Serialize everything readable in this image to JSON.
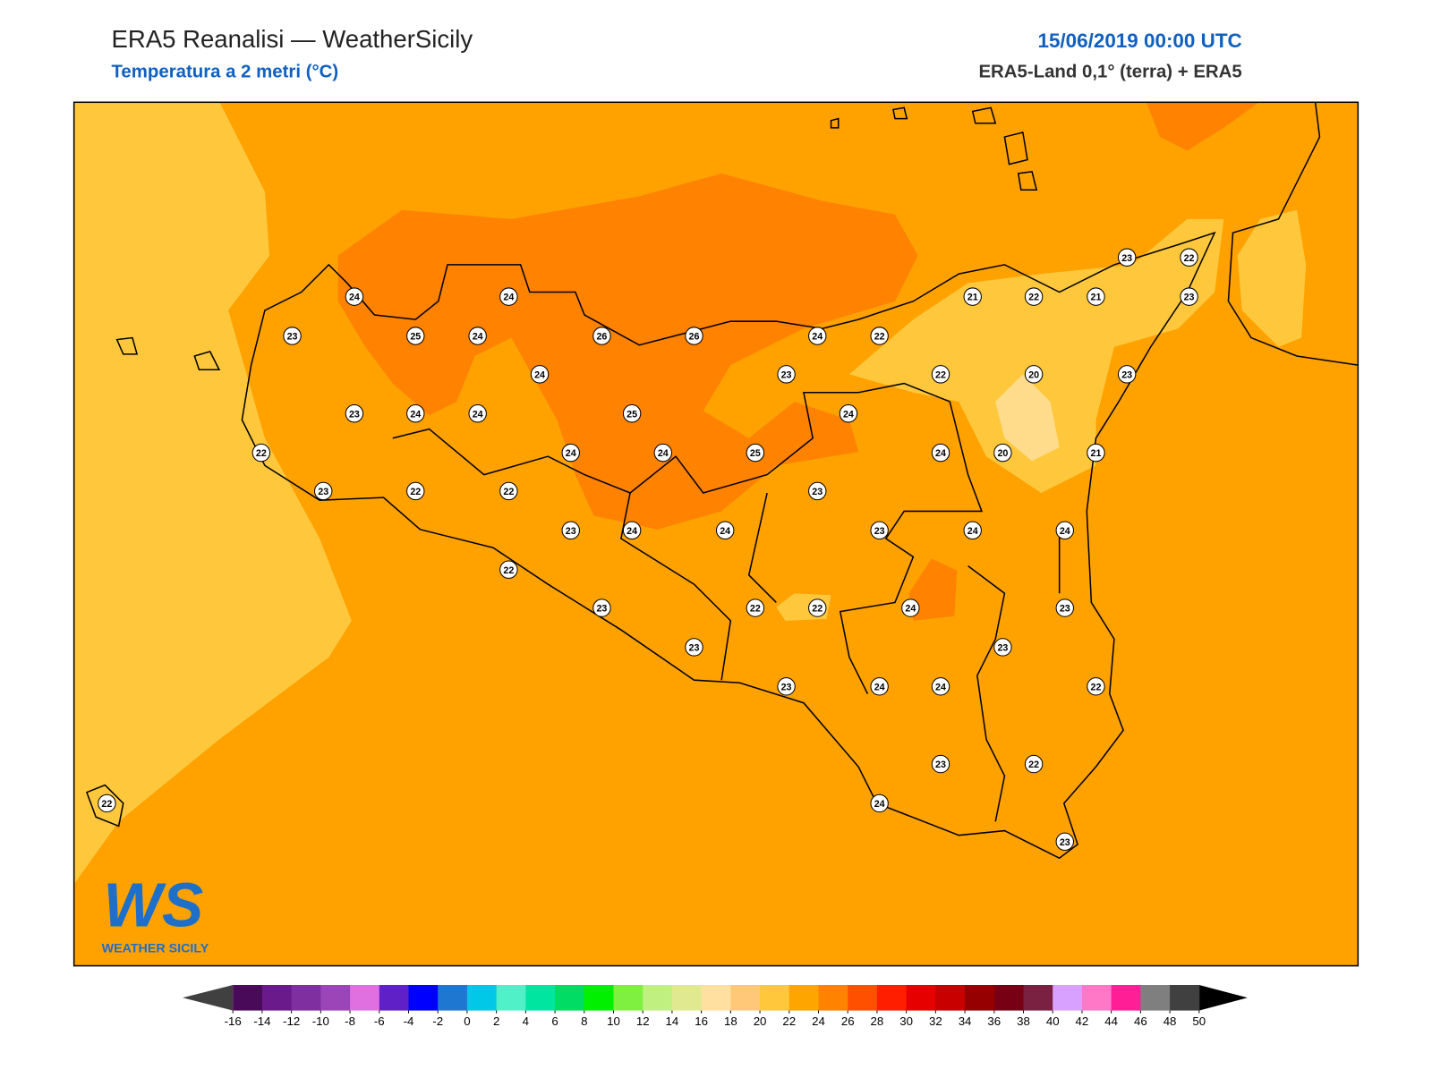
{
  "header": {
    "title": "ERA5 Reanalisi — WeatherSicily",
    "subtitle": "Temperatura a 2 metri (°C)",
    "date": "15/06/2019 00:00 UTC",
    "source": "ERA5-Land 0,1° (terra) + ERA5"
  },
  "stations": [
    24,
    24,
    23,
    25,
    24,
    26,
    26,
    24,
    22,
    21,
    22,
    21,
    23,
    22,
    23,
    24,
    23,
    22,
    20,
    23,
    23,
    24,
    24,
    25,
    24,
    22,
    24,
    24,
    25,
    24,
    20,
    21,
    23,
    22,
    22,
    23,
    23,
    24,
    24,
    23,
    24,
    24,
    22,
    23,
    22,
    22,
    24,
    23,
    23,
    23,
    23,
    24,
    24,
    22,
    23,
    22,
    22,
    24,
    23
  ],
  "colorbar": {
    "ticks": [
      -16,
      -14,
      -12,
      -10,
      -8,
      -6,
      -4,
      -2,
      0,
      2,
      4,
      6,
      8,
      10,
      12,
      14,
      16,
      18,
      20,
      22,
      24,
      26,
      28,
      30,
      32,
      34,
      36,
      38,
      40,
      42,
      44,
      46,
      48,
      50
    ],
    "colors": [
      "#4a0a5a",
      "#6a1a8a",
      "#7f2fa0",
      "#9b45b8",
      "#e070e0",
      "#6020c8",
      "#0000ff",
      "#1e78d2",
      "#00c8e6",
      "#50f0c8",
      "#00e6a0",
      "#00dc64",
      "#00f000",
      "#80f040",
      "#c0f080",
      "#e0e890",
      "#ffe0a0",
      "#ffc878",
      "#ffc83c",
      "#ffa500",
      "#ff8200",
      "#ff5000",
      "#ff1e00",
      "#e60000",
      "#c80000",
      "#960000",
      "#780014",
      "#7a2040",
      "#d8a0ff",
      "#ff78c8",
      "#ff1e96",
      "#7f7f7f",
      "#404040"
    ],
    "under_color": "#404040",
    "over_color": "#000000"
  },
  "logo": {
    "mark": "WS",
    "name": "WEATHER SICILY"
  }
}
